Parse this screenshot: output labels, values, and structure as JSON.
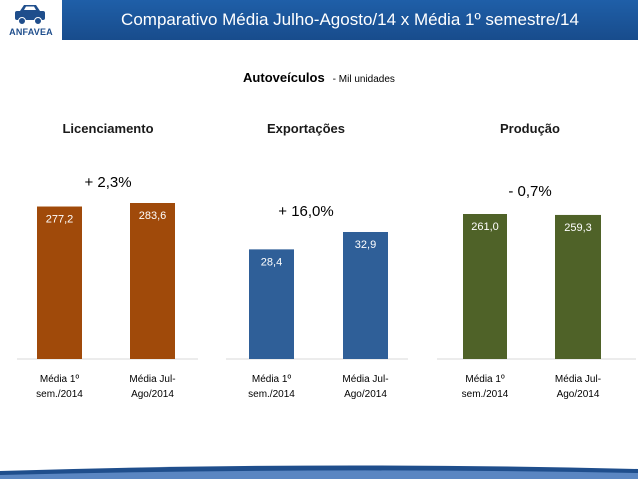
{
  "header": {
    "title": "Comparativo Média Julho-Agosto/14 x Média 1º semestre/14",
    "logo_text": "ANFAVEA",
    "bar_color": "#1f5fa8"
  },
  "subtitle": {
    "main": "Autoveículos",
    "unit": "- Mil unidades"
  },
  "chart_data": [
    {
      "type": "bar",
      "title": "Licenciamento",
      "change_label": "+ 2,3%",
      "categories": [
        "Média 1º sem./2014",
        "Média Jul-Ago/2014"
      ],
      "category_lines": [
        [
          "Média 1º",
          "sem./2014"
        ],
        [
          "Média Jul-",
          "Ago/2014"
        ]
      ],
      "values": [
        277.2,
        283.6
      ],
      "value_labels": [
        "277,2",
        "283,6"
      ],
      "color": "#a04a0a"
    },
    {
      "type": "bar",
      "title": "Exportações",
      "change_label": "+ 16,0%",
      "categories": [
        "Média 1º sem./2014",
        "Média Jul-Ago/2014"
      ],
      "category_lines": [
        [
          "Média 1º",
          "sem./2014"
        ],
        [
          "Média Jul-",
          "Ago/2014"
        ]
      ],
      "values": [
        28.4,
        32.9
      ],
      "value_labels": [
        "28,4",
        "32,9"
      ],
      "color": "#2f5f98"
    },
    {
      "type": "bar",
      "title": "Produção",
      "change_label": "- 0,7%",
      "categories": [
        "Média 1º sem./2014",
        "Média Jul-Ago/2014"
      ],
      "category_lines": [
        [
          "Média 1º",
          "sem./2014"
        ],
        [
          "Média Jul-",
          "Ago/2014"
        ]
      ],
      "values": [
        261.0,
        259.3
      ],
      "value_labels": [
        "261,0",
        "259,3"
      ],
      "color": "#4f6228"
    }
  ]
}
